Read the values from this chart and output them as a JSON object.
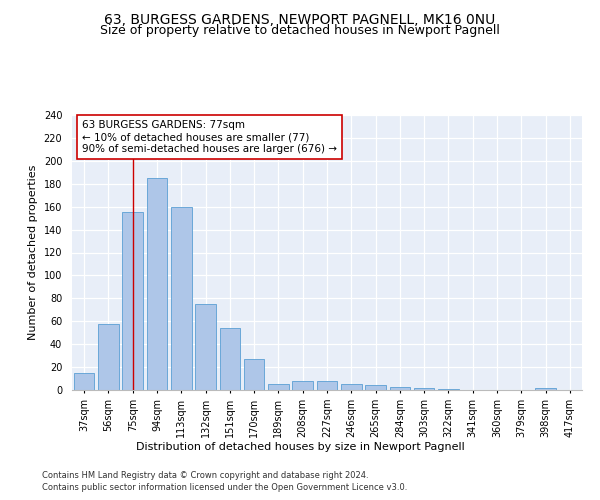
{
  "title1": "63, BURGESS GARDENS, NEWPORT PAGNELL, MK16 0NU",
  "title2": "Size of property relative to detached houses in Newport Pagnell",
  "xlabel": "Distribution of detached houses by size in Newport Pagnell",
  "ylabel": "Number of detached properties",
  "categories": [
    "37sqm",
    "56sqm",
    "75sqm",
    "94sqm",
    "113sqm",
    "132sqm",
    "151sqm",
    "170sqm",
    "189sqm",
    "208sqm",
    "227sqm",
    "246sqm",
    "265sqm",
    "284sqm",
    "303sqm",
    "322sqm",
    "341sqm",
    "360sqm",
    "379sqm",
    "398sqm",
    "417sqm"
  ],
  "values": [
    15,
    58,
    155,
    185,
    160,
    75,
    54,
    27,
    5,
    8,
    8,
    5,
    4,
    3,
    2,
    1,
    0,
    0,
    0,
    2,
    0
  ],
  "bar_color": "#aec6e8",
  "bar_edge_color": "#5a9fd4",
  "vline_x_index": 2,
  "vline_color": "#cc0000",
  "annotation_text": "63 BURGESS GARDENS: 77sqm\n← 10% of detached houses are smaller (77)\n90% of semi-detached houses are larger (676) →",
  "annotation_box_color": "#ffffff",
  "annotation_box_edge": "#cc0000",
  "ylim": [
    0,
    240
  ],
  "yticks": [
    0,
    20,
    40,
    60,
    80,
    100,
    120,
    140,
    160,
    180,
    200,
    220,
    240
  ],
  "background_color": "#e8eef8",
  "footer1": "Contains HM Land Registry data © Crown copyright and database right 2024.",
  "footer2": "Contains public sector information licensed under the Open Government Licence v3.0.",
  "title1_fontsize": 10,
  "title2_fontsize": 9,
  "tick_fontsize": 7,
  "ylabel_fontsize": 8,
  "xlabel_fontsize": 8,
  "footer_fontsize": 6
}
